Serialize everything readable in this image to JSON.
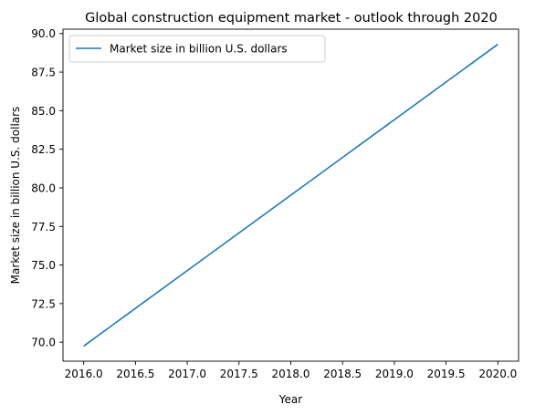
{
  "chart_data": {
    "type": "line",
    "title": "Global construction equipment market - outlook through 2020",
    "xlabel": "Year",
    "ylabel": "Market size in billion U.S. dollars",
    "x": [
      2016,
      2020
    ],
    "series": [
      {
        "name": "Market size in billion U.S. dollars",
        "values": [
          69.75,
          89.3
        ]
      }
    ],
    "xlim": [
      2015.8,
      2020.2
    ],
    "ylim": [
      68.77,
      90.28
    ],
    "xticks": [
      2016.0,
      2016.5,
      2017.0,
      2017.5,
      2018.0,
      2018.5,
      2019.0,
      2019.5,
      2020.0
    ],
    "xtick_labels": [
      "2016.0",
      "2016.5",
      "2017.0",
      "2017.5",
      "2018.0",
      "2018.5",
      "2019.0",
      "2019.5",
      "2020.0"
    ],
    "yticks": [
      70.0,
      72.5,
      75.0,
      77.5,
      80.0,
      82.5,
      85.0,
      87.5,
      90.0
    ],
    "ytick_labels": [
      "70.0",
      "72.5",
      "75.0",
      "77.5",
      "80.0",
      "82.5",
      "85.0",
      "87.5",
      "90.0"
    ],
    "grid": false,
    "legend_position": "upper-left",
    "line_color": "#1f77b4"
  }
}
